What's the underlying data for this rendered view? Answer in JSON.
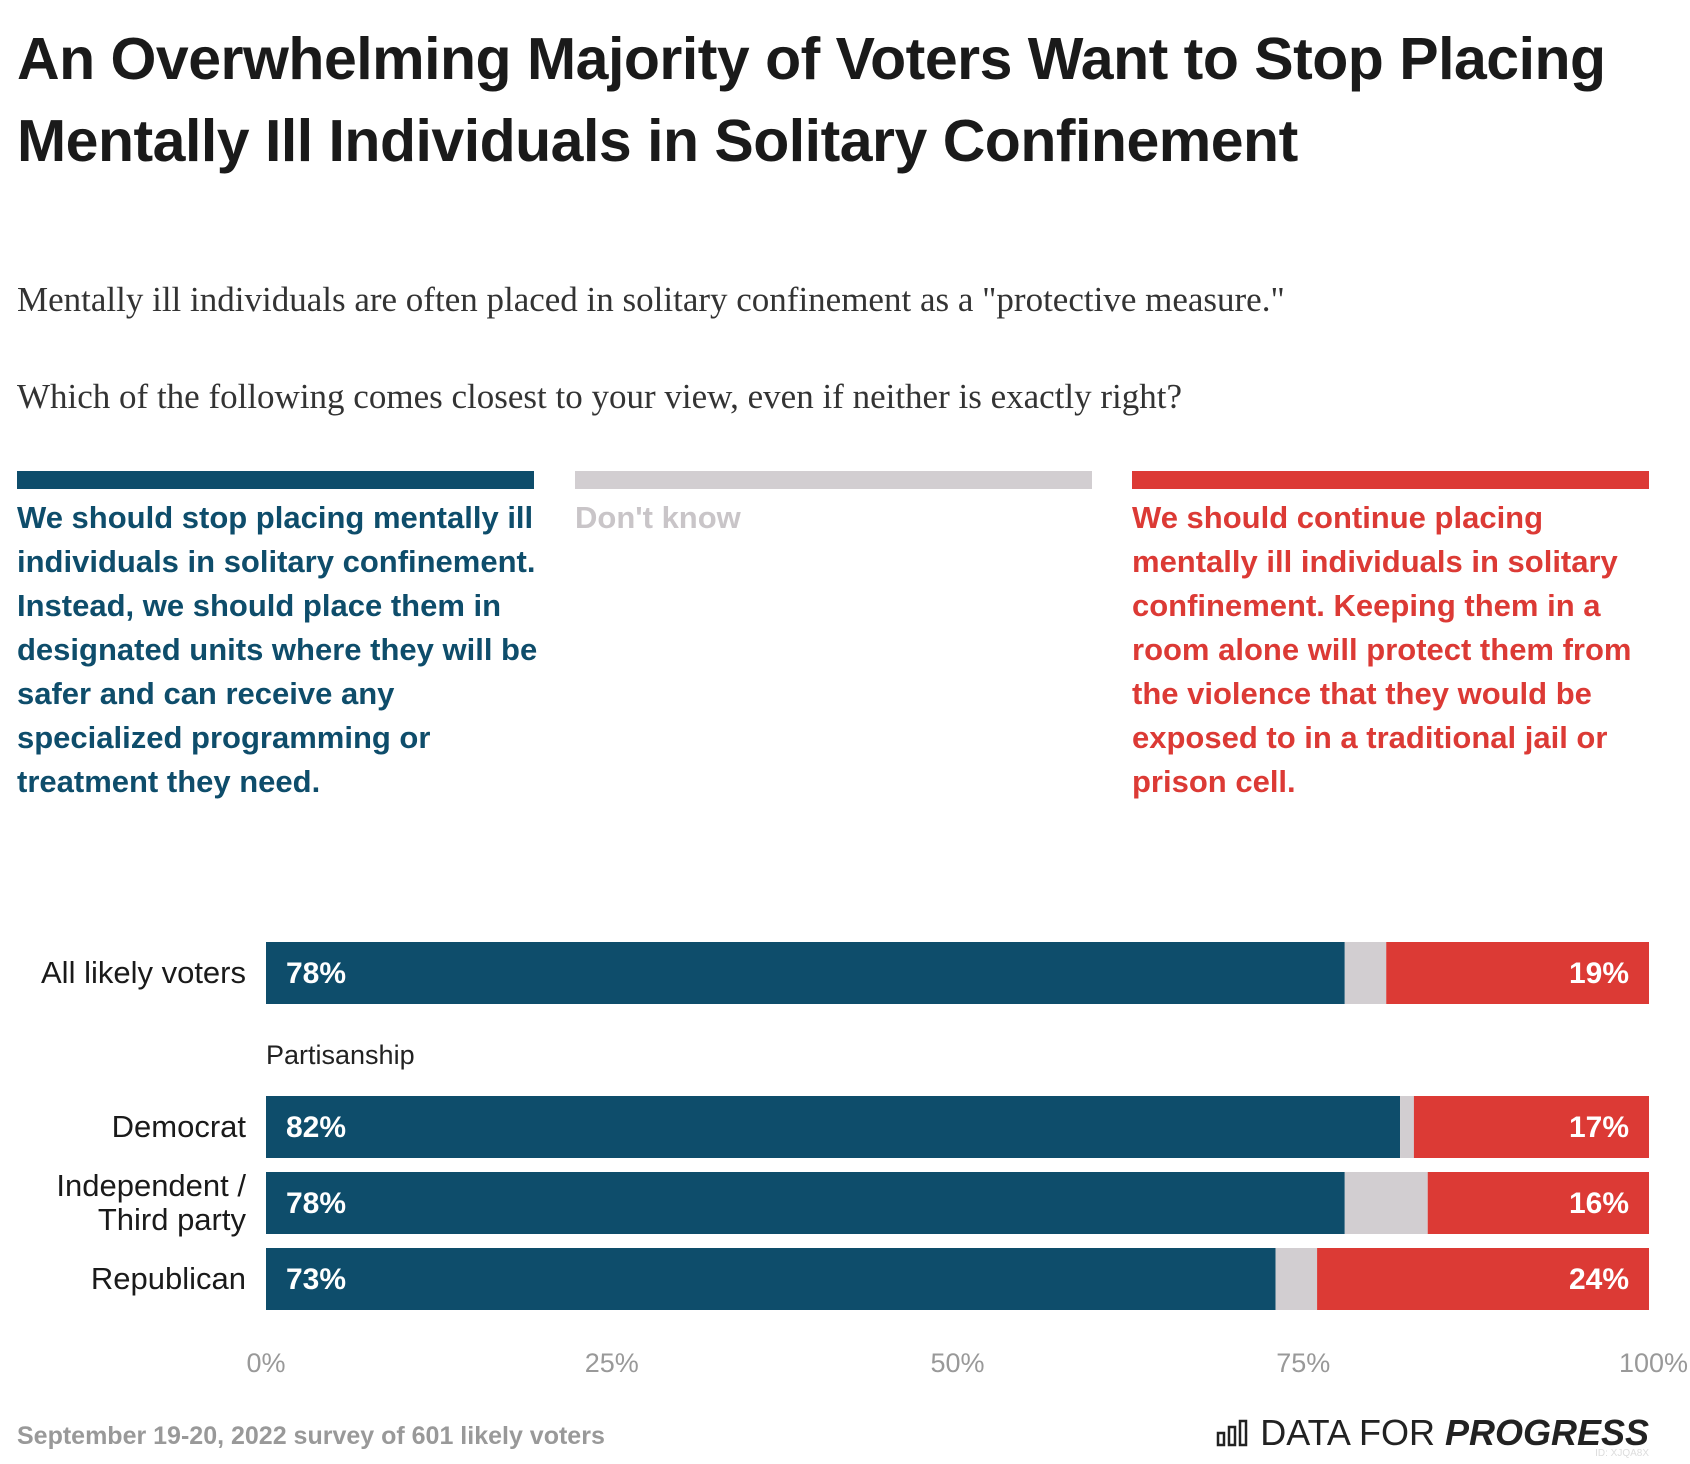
{
  "chart_data": {
    "type": "stacked-bar-horizontal",
    "title": "An Overwhelming Majority of Voters Want to Stop Placing Mentally Ill Individuals in Solitary Confinement",
    "subtitle": "Mentally ill individuals are often placed in solitary confinement as a \"protective measure.\"",
    "question": "Which of the following comes closest to your view, even if neither is exactly right?",
    "categories": [
      "All likely voters",
      "Democrat",
      "Independent / Third party",
      "Republican"
    ],
    "group_label": "Partisanship",
    "series": [
      {
        "name": "We should stop placing mentally ill individuals in solitary confinement. Instead, we should place them in designated units where they will be safer and can receive any specialized programming or treatment they need.",
        "color": "#0e4d6b",
        "values": [
          78,
          82,
          78,
          73
        ],
        "value_labels": [
          "78%",
          "82%",
          "78%",
          "73%"
        ]
      },
      {
        "name": "Don't know",
        "color": "#d2ced1",
        "values": [
          3,
          1,
          6,
          3
        ]
      },
      {
        "name": "We should continue placing mentally ill individuals in solitary confinement. Keeping them in a room alone will protect them from the violence that they would be exposed to in a traditional jail or prison cell.",
        "color": "#dc3a35",
        "values": [
          19,
          17,
          16,
          24
        ],
        "value_labels": [
          "19%",
          "17%",
          "16%",
          "24%"
        ]
      }
    ],
    "xlim": [
      0,
      100
    ],
    "xticks": [
      {
        "value": 0,
        "label": "0%"
      },
      {
        "value": 25,
        "label": "25%"
      },
      {
        "value": 50,
        "label": "50%"
      },
      {
        "value": 75,
        "label": "75%"
      },
      {
        "value": 100,
        "label": "100%"
      }
    ],
    "grid": false,
    "source": "September 19-20, 2022 survey of 601 likely voters",
    "logo": [
      "DATA FOR",
      "PROGRESS"
    ],
    "chart_id": "ID: XJQA8X"
  }
}
